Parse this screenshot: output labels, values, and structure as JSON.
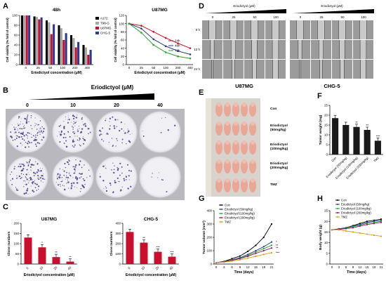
{
  "panel_letters": [
    "A",
    "B",
    "C",
    "D",
    "E",
    "F",
    "G",
    "H"
  ],
  "A1": {
    "title": "48h",
    "ylabel": "Cell viability (% fold of control)",
    "xlabel": "Eriodictyol concentration (μM)",
    "categories": [
      "0",
      "25",
      "50",
      "100",
      "200",
      "400"
    ],
    "yticks": [
      "0",
      "20",
      "40",
      "60",
      "80",
      "100"
    ],
    "legend": [
      "A172",
      "T98-G",
      "U87MG",
      "CHG-5"
    ],
    "colors": [
      "#000000",
      "#a6a6a6",
      "#c8102e",
      "#2b3a8c"
    ],
    "series": [
      [
        100,
        98,
        90,
        80,
        60,
        40
      ],
      [
        100,
        97,
        86,
        74,
        54,
        35
      ],
      [
        100,
        92,
        62,
        50,
        35,
        20
      ],
      [
        100,
        96,
        82,
        64,
        46,
        30
      ]
    ]
  },
  "A2": {
    "title": "U87MG",
    "ylabel": "Cell viability (% fold of control)",
    "xlabel": "Eriodictyol concentration (μM)",
    "categories": [
      "0",
      "25",
      "50",
      "100",
      "200",
      "400"
    ],
    "yticks": [
      "0",
      "20",
      "40",
      "60",
      "80",
      "100",
      "120"
    ],
    "legend": [
      "24h",
      "48h",
      "72h"
    ],
    "colors": [
      "#c8102e",
      "#2b3a8c",
      "#2ca02c"
    ],
    "series": [
      [
        100,
        95,
        80,
        65,
        52,
        40
      ],
      [
        100,
        88,
        62,
        45,
        33,
        25
      ],
      [
        100,
        78,
        48,
        30,
        20,
        15
      ]
    ]
  },
  "B": {
    "title": "Eriodictyol (μM)",
    "doses": [
      "0",
      "10",
      "20",
      "40"
    ]
  },
  "C1": {
    "title": "U87MG",
    "ylabel": "Clone numbers",
    "xlabel": "Eriodictyol concentration (μM)",
    "categories": [
      "0",
      "10",
      "20",
      "40"
    ],
    "values": [
      130,
      82,
      34,
      12
    ],
    "yticks": [
      "0",
      "50",
      "100",
      "150",
      "200"
    ],
    "stars": [
      "",
      "*",
      "**",
      "**"
    ]
  },
  "C2": {
    "title": "CHG-5",
    "ylabel": "Clone numbers",
    "xlabel": "Eriodictyol concentration (μM)",
    "categories": [
      "0",
      "10",
      "20",
      "40"
    ],
    "values": [
      315,
      210,
      120,
      72
    ],
    "yticks": [
      "0",
      "100",
      "200",
      "300",
      "400"
    ],
    "stars": [
      "",
      "**",
      "***",
      "***"
    ]
  },
  "D": {
    "header": "Eriodictyol (μM)",
    "doses": [
      "0",
      "25",
      "50",
      "100"
    ],
    "times": [
      "0 h",
      "12 h",
      "24 h"
    ],
    "groups": [
      "U87MG",
      "CHG-5"
    ]
  },
  "E": {
    "groups": [
      "Con",
      "Eriodictyol (50mg/kg)",
      "Eriodictyol (100mg/kg)",
      "Eriodictyol (200mg/kg)",
      "TMZ"
    ]
  },
  "F": {
    "ylabel": "Tumor weight (mg)",
    "categories": [
      "Con",
      "Eriodictyol (50mg/kg)",
      "Eriodictyol (100mg/kg)",
      "Eriodictyol (200mg/kg)",
      "TMZ"
    ],
    "values": [
      18.5,
      15.0,
      14.0,
      12.5,
      7.0
    ],
    "yticks": [
      "0",
      "5",
      "10",
      "15",
      "20",
      "25"
    ],
    "stars": [
      "",
      "",
      "**",
      "**",
      "***"
    ]
  },
  "G": {
    "ylabel": "Tumor volume (mm³)",
    "xlabel": "Time (days)",
    "x": [
      "0",
      "3",
      "6",
      "9",
      "12",
      "15",
      "18",
      "21"
    ],
    "yticks": [
      "0",
      "100",
      "200",
      "300",
      "400"
    ],
    "legend": [
      "Con",
      "Eriodictyol (50mg/kg)",
      "Eriodictyol (100mg/kg)",
      "Eriodictyol (200mg/kg)",
      "TMZ"
    ],
    "colors": [
      "#000000",
      "#2b3a8c",
      "#2ca02c",
      "#8b1a5c",
      "#d4a017"
    ],
    "series": [
      [
        10,
        20,
        40,
        60,
        95,
        140,
        200,
        300
      ],
      [
        10,
        18,
        32,
        48,
        72,
        100,
        130,
        165
      ],
      [
        10,
        17,
        30,
        44,
        64,
        90,
        115,
        140
      ],
      [
        10,
        16,
        28,
        40,
        58,
        80,
        100,
        120
      ],
      [
        10,
        14,
        22,
        32,
        44,
        58,
        72,
        85
      ]
    ],
    "stars": [
      "*",
      "**",
      "**",
      "***"
    ]
  },
  "H": {
    "ylabel": "Body weight (g)",
    "xlabel": "Time (days)",
    "x": [
      "0",
      "3",
      "6",
      "9",
      "12",
      "15",
      "18",
      "21"
    ],
    "yticks": [
      "0",
      "5",
      "10",
      "15",
      "20",
      "25"
    ],
    "legend": [
      "Con",
      "Eriodictyol (50mg/kg)",
      "Eriodictyol (100mg/kg)",
      "Eriodictyol (200mg/kg)",
      "TMZ"
    ],
    "colors": [
      "#000000",
      "#2b3a8c",
      "#2ca02c",
      "#8b1a5c",
      "#d4a017"
    ],
    "series": [
      [
        16,
        16.5,
        17,
        18,
        19,
        20,
        20.5,
        21
      ],
      [
        16,
        16.4,
        17,
        17.8,
        18.5,
        19.5,
        20,
        20.5
      ],
      [
        16,
        16.3,
        16.8,
        17.5,
        18.2,
        19,
        19.5,
        20
      ],
      [
        16,
        16.2,
        16.6,
        17,
        17.8,
        18.5,
        19,
        19.5
      ],
      [
        16,
        16,
        15.5,
        15,
        14.5,
        14,
        13.5,
        13
      ]
    ]
  }
}
